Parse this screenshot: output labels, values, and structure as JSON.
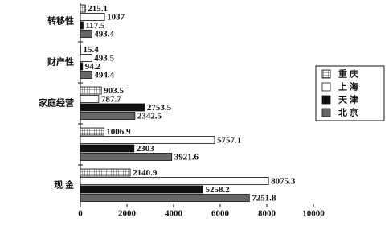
{
  "chart_data": {
    "type": "hbar",
    "categories": [
      "转移性",
      "财产性",
      "家庭经营",
      null,
      "现 金"
    ],
    "series": [
      {
        "name": "重 庆",
        "color": "#ffffff",
        "pattern": "grid",
        "values": [
          215.1,
          15.4,
          903.5,
          1006.9,
          2140.9
        ]
      },
      {
        "name": "上 海",
        "color": "#ffffff",
        "values": [
          1037,
          493.5,
          787.7,
          5757.1,
          8075.3
        ]
      },
      {
        "name": "天 津",
        "color": "#111111",
        "values": [
          117.5,
          94.2,
          2753.5,
          2303,
          5258.2
        ]
      },
      {
        "name": "北 京",
        "color": "#666666",
        "values": [
          493.4,
          494.4,
          2342.5,
          3921.6,
          7251.8
        ]
      }
    ],
    "xlim": [
      0,
      10000
    ],
    "xticks": [
      0,
      2000,
      4000,
      6000,
      8000,
      10000
    ],
    "legend": "right"
  }
}
